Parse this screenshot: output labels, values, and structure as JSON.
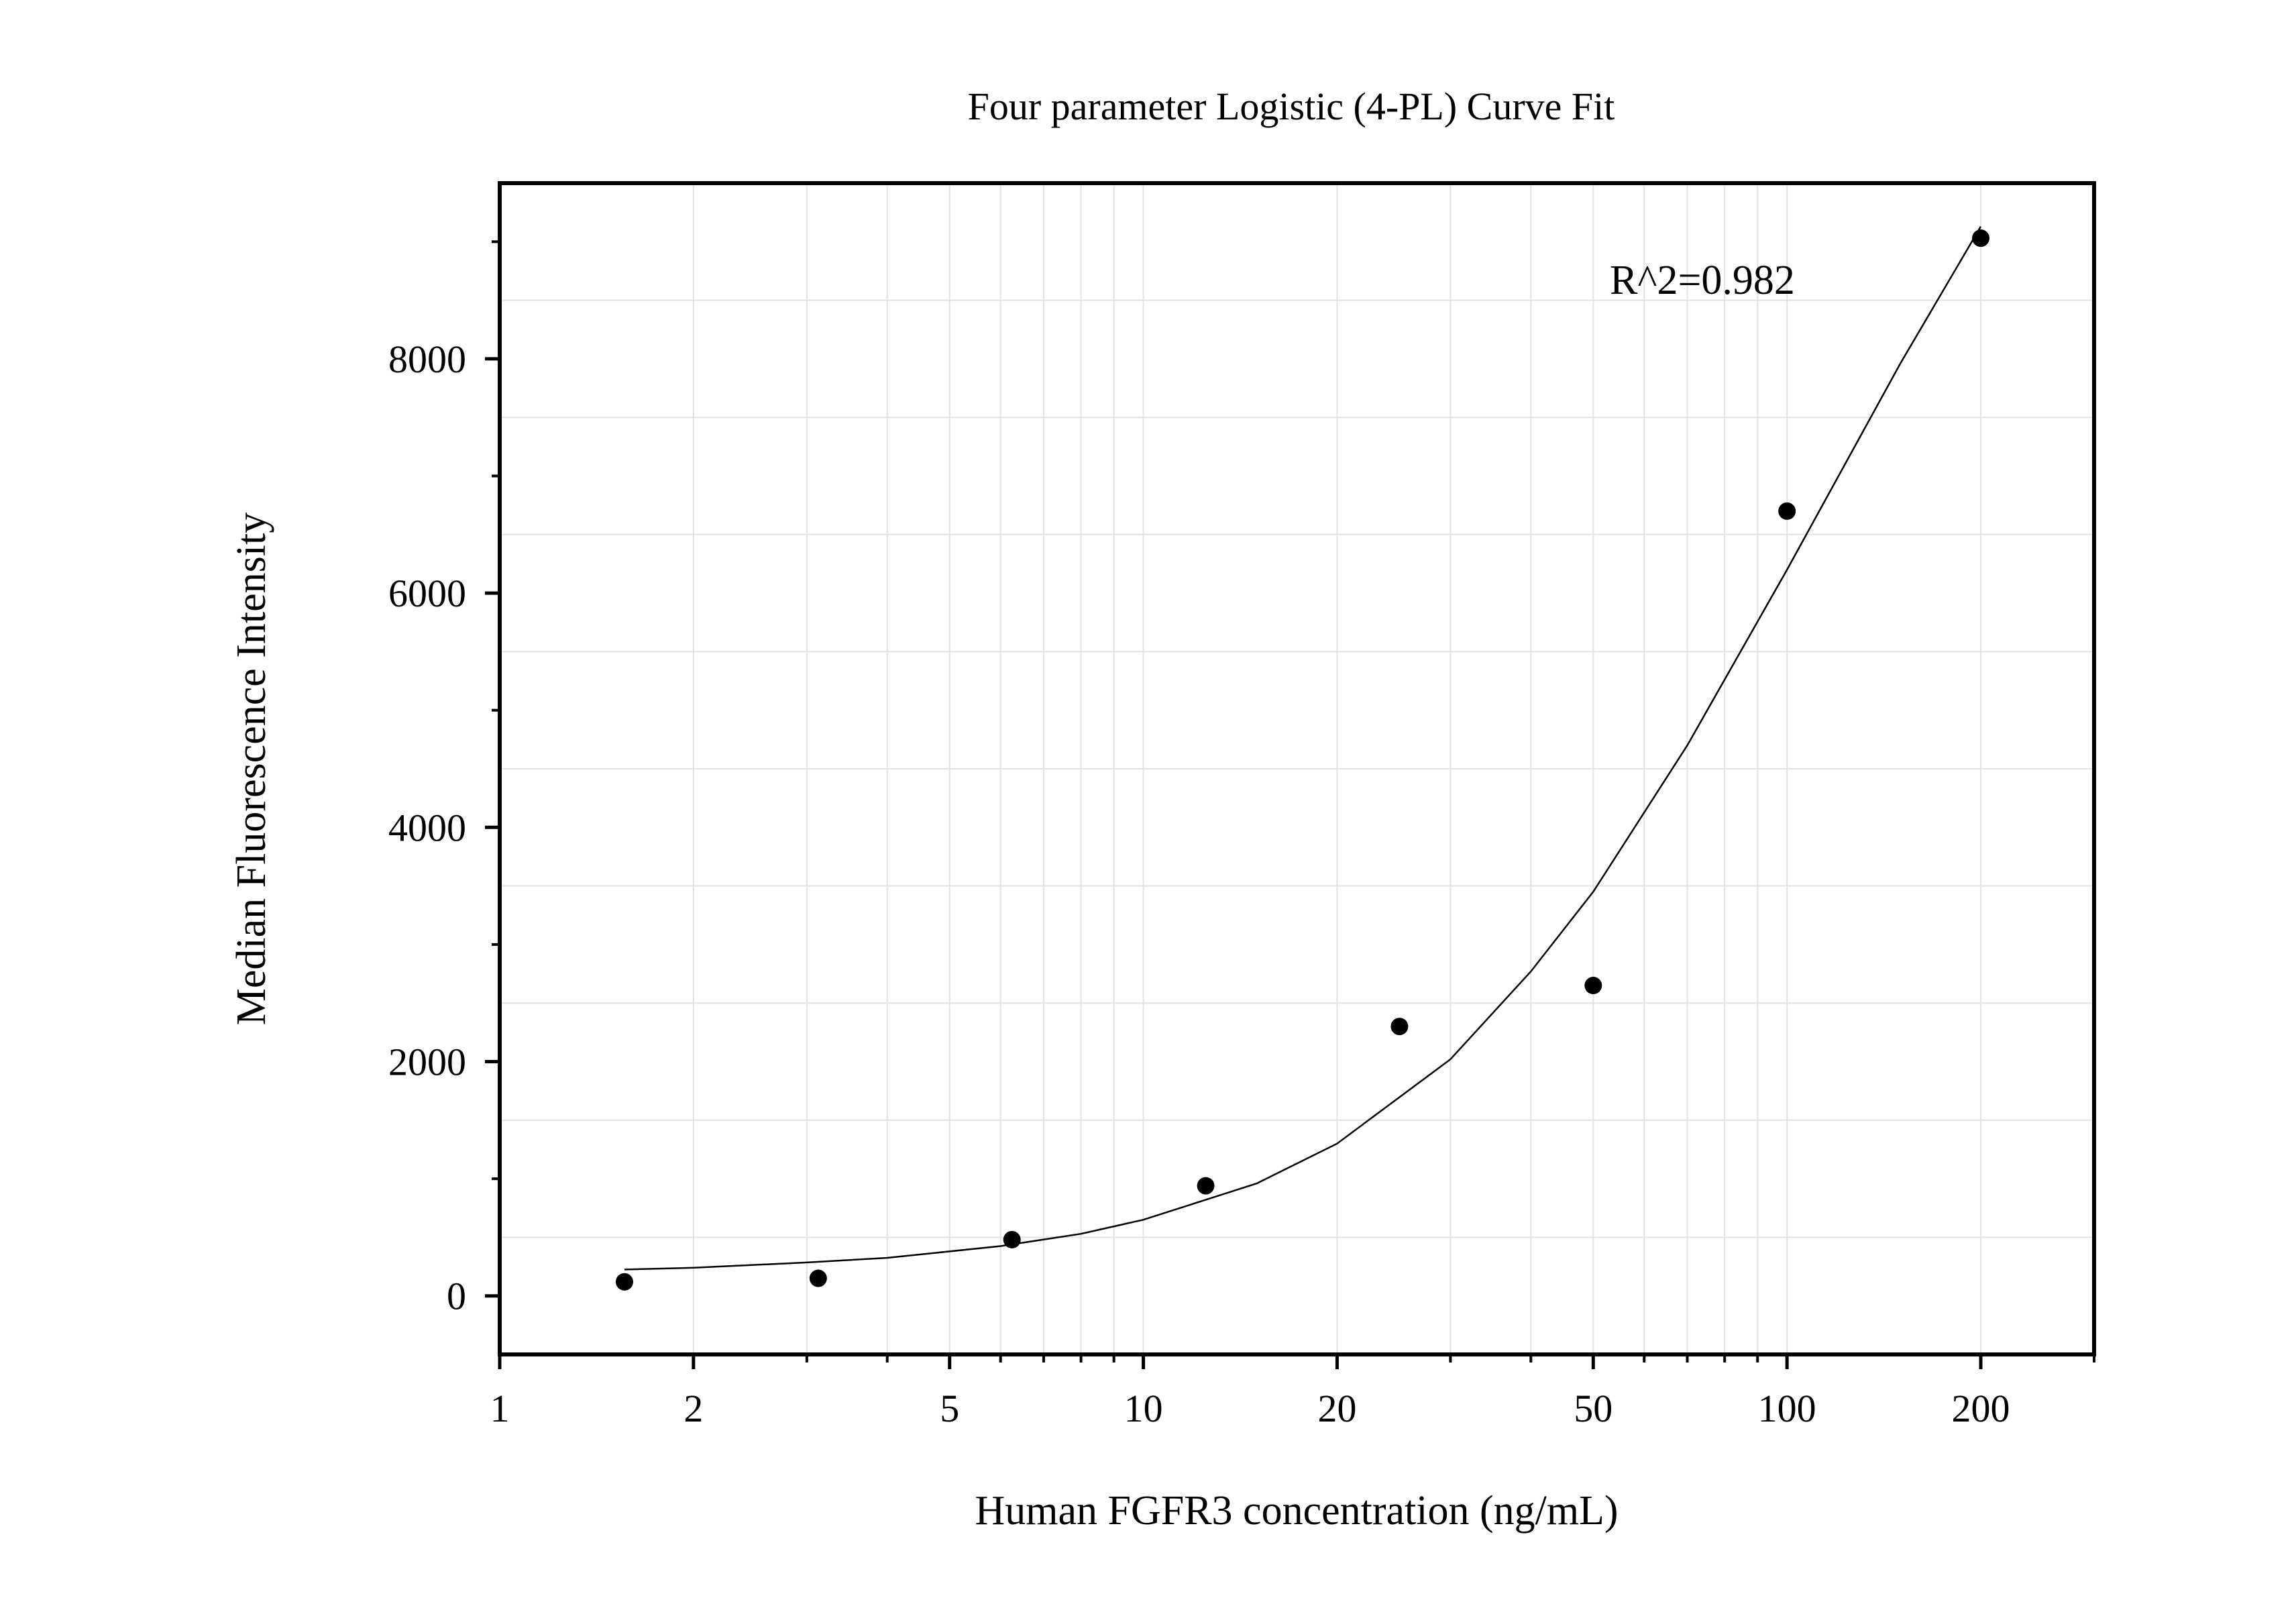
{
  "chart_data": {
    "type": "scatter",
    "title": "Four parameter Logistic (4-PL) Curve Fit",
    "xlabel": "Human FGFR3 concentration (ng/mL)",
    "ylabel": "Median Fluorescence Intensity",
    "x_scale": "log",
    "xlim": [
      1,
      300
    ],
    "ylim": [
      -500,
      9500
    ],
    "x_ticks": [
      1,
      2,
      5,
      10,
      20,
      50,
      100,
      200
    ],
    "x_tick_labels": [
      "1",
      "2",
      "5",
      "10",
      "20",
      "50",
      "100",
      "200"
    ],
    "y_ticks": [
      0,
      2000,
      4000,
      6000,
      8000
    ],
    "y_tick_labels": [
      "0",
      "2000",
      "4000",
      "6000",
      "8000"
    ],
    "grid": true,
    "series": [
      {
        "type": "scatter",
        "x": [
          1.5625,
          3.125,
          6.25,
          12.5,
          25,
          50,
          100,
          200
        ],
        "y": [
          120,
          150,
          480,
          940,
          2300,
          2650,
          6700,
          9030
        ]
      },
      {
        "type": "line",
        "x": [
          1.5625,
          2,
          3,
          4,
          6,
          8,
          10,
          15,
          20,
          30,
          40,
          50,
          70,
          100,
          150,
          200
        ],
        "y": [
          225,
          240,
          285,
          325,
          425,
          530,
          650,
          960,
          1300,
          2020,
          2770,
          3450,
          4700,
          6200,
          7960,
          9130
        ]
      }
    ],
    "annotations": [
      {
        "text": "R^2=0.982",
        "position": "top-right"
      }
    ]
  }
}
